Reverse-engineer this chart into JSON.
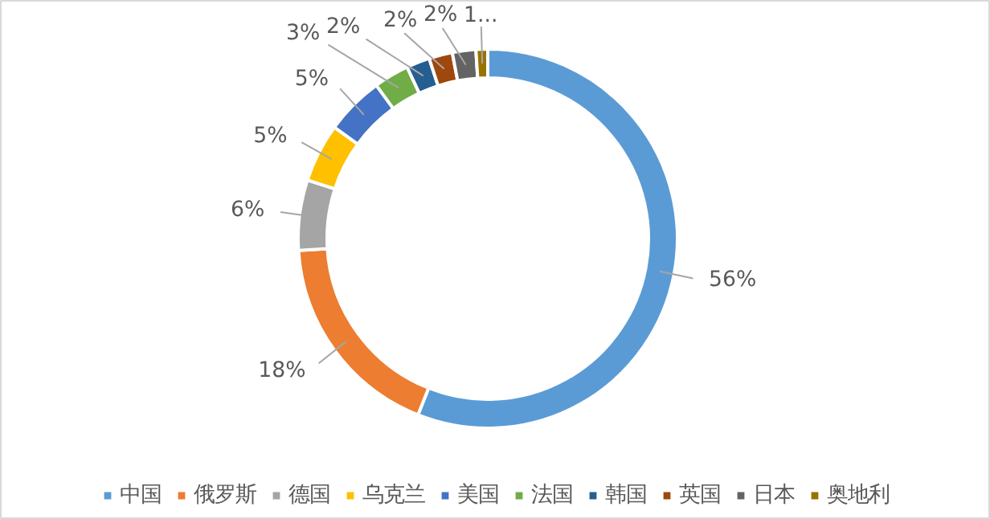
{
  "chart_data": {
    "type": "donut",
    "categories": [
      "中国",
      "俄罗斯",
      "德国",
      "乌克兰",
      "美国",
      "法国",
      "韩国",
      "英国",
      "日本",
      "奥地利"
    ],
    "values": [
      56,
      18,
      6,
      5,
      5,
      3,
      2,
      2,
      2,
      1
    ],
    "colors": [
      "#5b9bd5",
      "#ed7d31",
      "#a5a5a5",
      "#ffc000",
      "#4472c4",
      "#70ad47",
      "#255e91",
      "#9e480e",
      "#636363",
      "#997300"
    ],
    "value_labels": [
      "56%",
      "18%",
      "6%",
      "5%",
      "5%",
      "3%",
      "2%",
      "2%",
      "2%",
      "1..."
    ],
    "legend": "bottom"
  }
}
